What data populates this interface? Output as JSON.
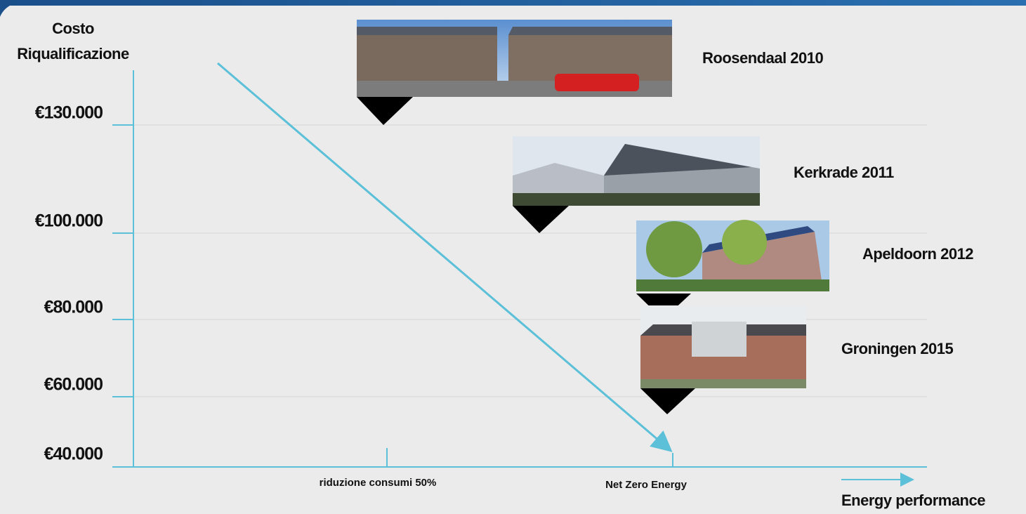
{
  "y_axis": {
    "title": [
      "Costo",
      "Riqualificazione"
    ],
    "ticks": [
      "€130.000",
      "€100.000",
      "€80.000",
      "€60.000",
      "€40.000"
    ]
  },
  "x_axis": {
    "ticks": [
      "riduzione consumi  50%",
      "Net Zero Energy"
    ],
    "title": "Energy performance"
  },
  "projects": [
    {
      "label": "Roosendaal 2010"
    },
    {
      "label": "Kerkrade 2011"
    },
    {
      "label": "Apeldoorn 2012"
    },
    {
      "label": "Groningen 2015"
    }
  ]
}
